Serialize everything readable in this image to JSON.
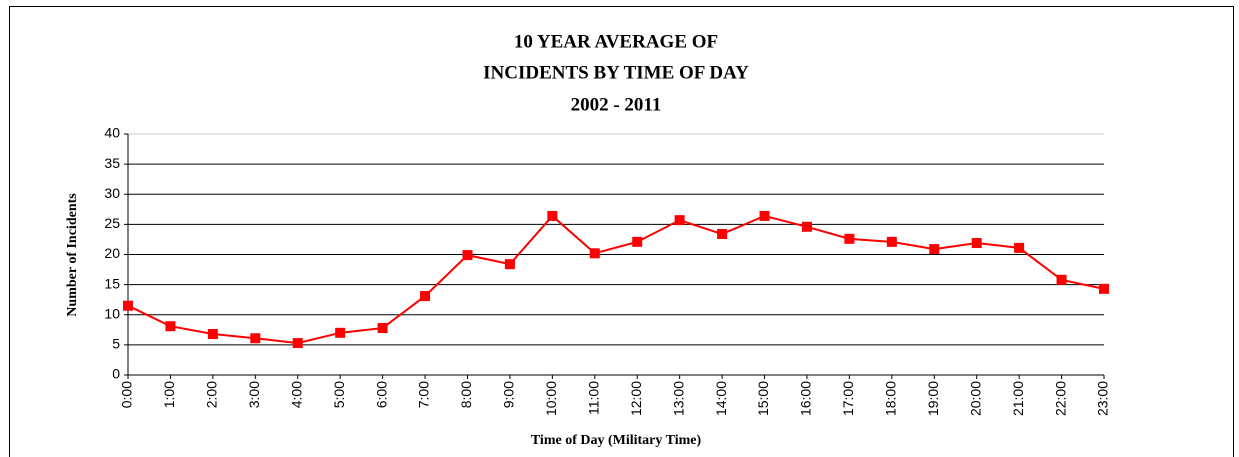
{
  "chart_data": {
    "type": "line",
    "title": [
      "10 YEAR AVERAGE OF",
      "INCIDENTS BY TIME OF DAY",
      "2002 - 2011"
    ],
    "xlabel": "Time of Day (Military Time)",
    "ylabel": "Number of Incidents",
    "categories": [
      "0:00",
      "1:00",
      "2:00",
      "3:00",
      "4:00",
      "5:00",
      "6:00",
      "7:00",
      "8:00",
      "9:00",
      "10:00",
      "11:00",
      "12:00",
      "13:00",
      "14:00",
      "15:00",
      "16:00",
      "17:00",
      "18:00",
      "19:00",
      "20:00",
      "21:00",
      "22:00",
      "23:00"
    ],
    "series": [
      {
        "color": "#ff0000",
        "values": [
          11.5,
          8.1,
          6.8,
          6.1,
          5.3,
          7.0,
          7.8,
          13.1,
          19.9,
          18.4,
          26.4,
          20.2,
          22.1,
          25.7,
          23.4,
          26.4,
          24.6,
          22.6,
          22.1,
          20.9,
          21.9,
          21.1,
          15.8,
          14.3
        ]
      }
    ],
    "ylim": [
      0,
      40
    ],
    "yticks": [
      0,
      5,
      10,
      15,
      20,
      25,
      30,
      35,
      40
    ],
    "grid": true
  }
}
